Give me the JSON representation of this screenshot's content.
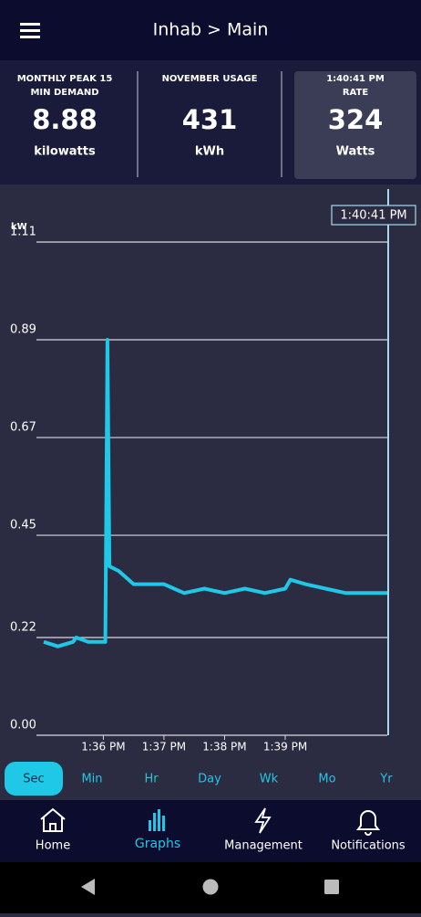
{
  "header": {
    "title": "Inhab > Main"
  },
  "stats": [
    {
      "label": "MONTHLY PEAK 15 MIN DEMAND",
      "value": "8.88",
      "unit": "kilowatts"
    },
    {
      "label": "NOVEMBER USAGE",
      "value": "431",
      "unit": "kWh"
    },
    {
      "time": "1:40:41 PM",
      "label": "RATE",
      "value": "324",
      "unit": "Watts"
    }
  ],
  "chart_data": {
    "type": "line",
    "y_label": "kW",
    "cursor_label": "1:40:41 PM",
    "x": [
      "1:35:01 PM",
      "1:35:15 PM",
      "1:35:30 PM",
      "1:35:33 PM",
      "1:35:45 PM",
      "1:36:00 PM",
      "1:36:02 PM",
      "1:36:04 PM",
      "1:36:06 PM",
      "1:36:15 PM",
      "1:36:30 PM",
      "1:36:45 PM",
      "1:37:00 PM",
      "1:37:10 PM",
      "1:37:20 PM",
      "1:37:40 PM",
      "1:38:00 PM",
      "1:38:20 PM",
      "1:38:40 PM",
      "1:39:00 PM",
      "1:39:05 PM",
      "1:39:20 PM",
      "1:39:40 PM",
      "1:40:00 PM",
      "1:40:20 PM",
      "1:40:41 PM"
    ],
    "series": [
      {
        "name": "kW",
        "color": "#1ec8e6",
        "values": [
          0.21,
          0.2,
          0.21,
          0.22,
          0.21,
          0.21,
          0.21,
          0.89,
          0.38,
          0.37,
          0.34,
          0.34,
          0.34,
          0.33,
          0.32,
          0.33,
          0.32,
          0.33,
          0.32,
          0.33,
          0.35,
          0.34,
          0.33,
          0.32,
          0.32,
          0.32
        ]
      }
    ],
    "xlim": [
      "1:35:01 PM",
      "1:40:41 PM"
    ],
    "xticks": [
      {
        "value": "1:36:00 PM",
        "label": "1:36 PM"
      },
      {
        "value": "1:37:00 PM",
        "label": "1:37 PM"
      },
      {
        "value": "1:38:00 PM",
        "label": "1:38 PM"
      },
      {
        "value": "1:39:00 PM",
        "label": "1:39 PM"
      }
    ],
    "ylim": [
      0,
      1.11
    ],
    "yticks": [
      {
        "value": 0,
        "label": "0.00"
      },
      0.22,
      0.45,
      0.67,
      0.89,
      1.11
    ],
    "grid": true
  },
  "ranges": [
    "Sec",
    "Min",
    "Hr",
    "Day",
    "Wk",
    "Mo",
    "Yr"
  ],
  "nav": [
    "Home",
    "Graphs",
    "Management",
    "Notifications"
  ]
}
